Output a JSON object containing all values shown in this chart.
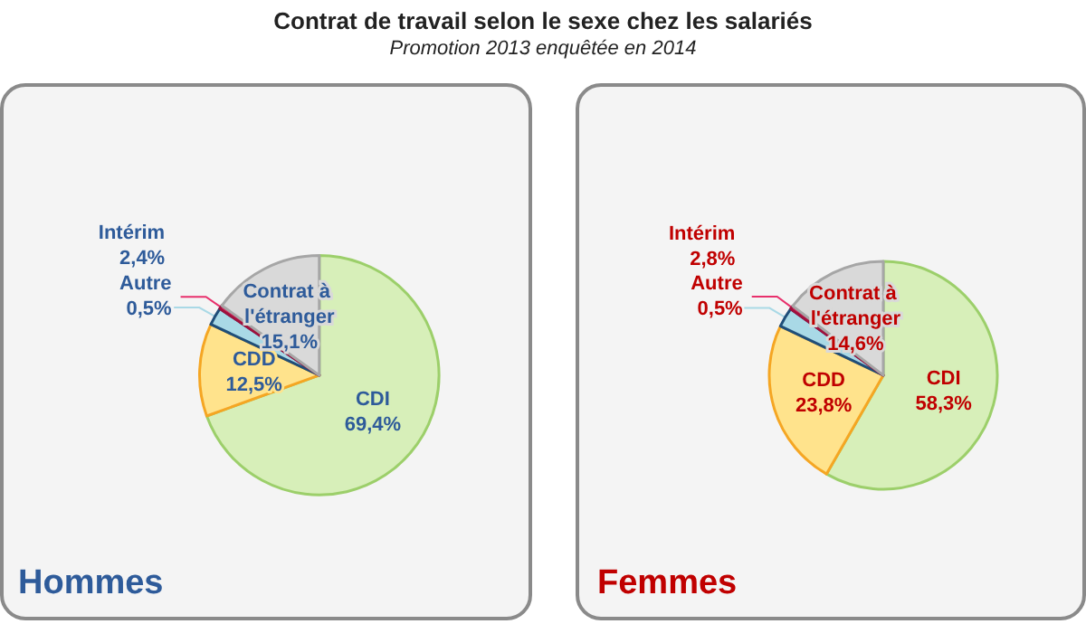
{
  "chart_data": [
    {
      "type": "pie",
      "title": "Contrat de travail selon le sexe chez les salariés",
      "subtitle": "Promotion 2013 enquêtée en 2014",
      "annotations": [
        "Hommes"
      ],
      "categories": [
        "CDI",
        "CDD",
        "Intérim",
        "Autre",
        "Contrat à l'étranger"
      ],
      "values": [
        69.4,
        12.5,
        2.4,
        0.5,
        15.1
      ],
      "value_labels": [
        "69,4%",
        "12,5%",
        "2,4%",
        "0,5%",
        "15,1%"
      ],
      "colors": [
        "#d7efb9",
        "#ffe38c",
        "#a9d9e6",
        "#e8306c",
        "#d9d9d9"
      ]
    },
    {
      "type": "pie",
      "annotations": [
        "Femmes"
      ],
      "categories": [
        "CDI",
        "CDD",
        "Intérim",
        "Autre",
        "Contrat à l'étranger"
      ],
      "values": [
        58.3,
        23.8,
        2.8,
        0.5,
        14.6
      ],
      "value_labels": [
        "58,3%",
        "23,8%",
        "2,8%",
        "0,5%",
        "14,6%"
      ],
      "colors": [
        "#d7efb9",
        "#ffe38c",
        "#a9d9e6",
        "#e8306c",
        "#d9d9d9"
      ]
    }
  ]
}
